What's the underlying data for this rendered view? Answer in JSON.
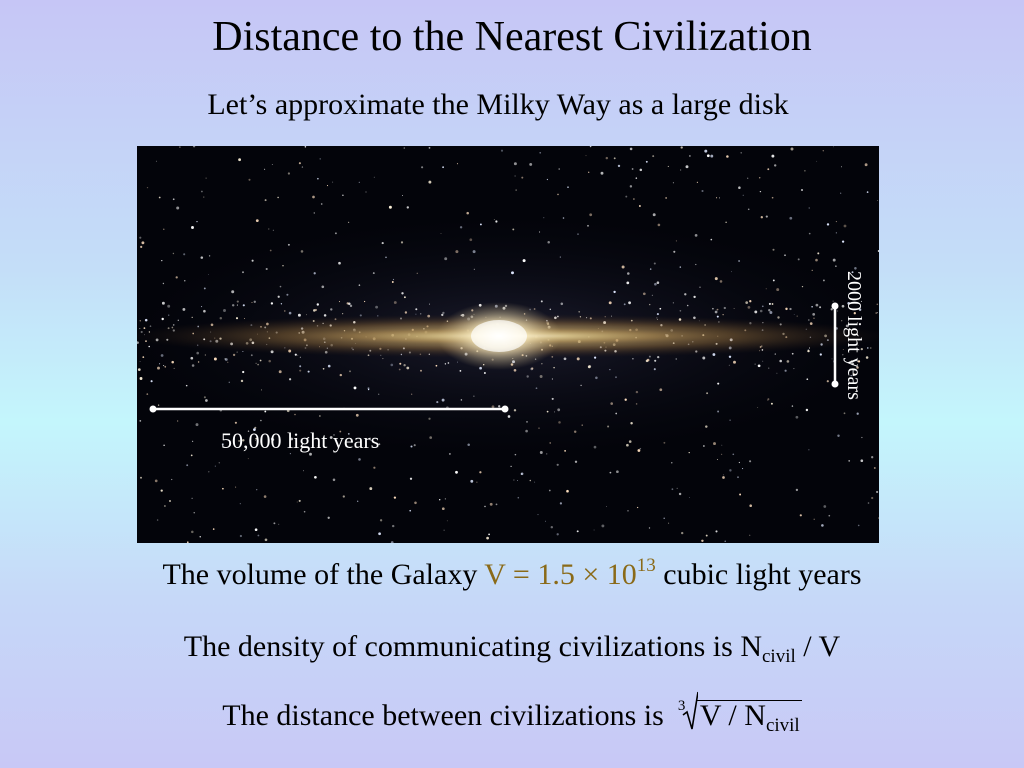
{
  "slide": {
    "title": "Distance to the Nearest Civilization",
    "subtitle": "Let’s approximate the Milky Way as a large disk",
    "image": {
      "width_label": "50,000 light years",
      "height_label": "2000 light years"
    },
    "lines": {
      "volume_prefix": "The volume of the Galaxy ",
      "volume_formula": "V = 1.5 × 10",
      "volume_exponent": "13",
      "volume_suffix": " cubic light years",
      "density_prefix": "The density of communicating civilizations is N",
      "density_subscript": "civil",
      "density_suffix": " / V",
      "distance_prefix": "The distance between civilizations is",
      "root_index": "3",
      "radicand_main": "V / N",
      "radicand_subscript": "civil"
    },
    "colors": {
      "formula_accent": "#8a6a18",
      "arrow": "#ffffff"
    }
  }
}
